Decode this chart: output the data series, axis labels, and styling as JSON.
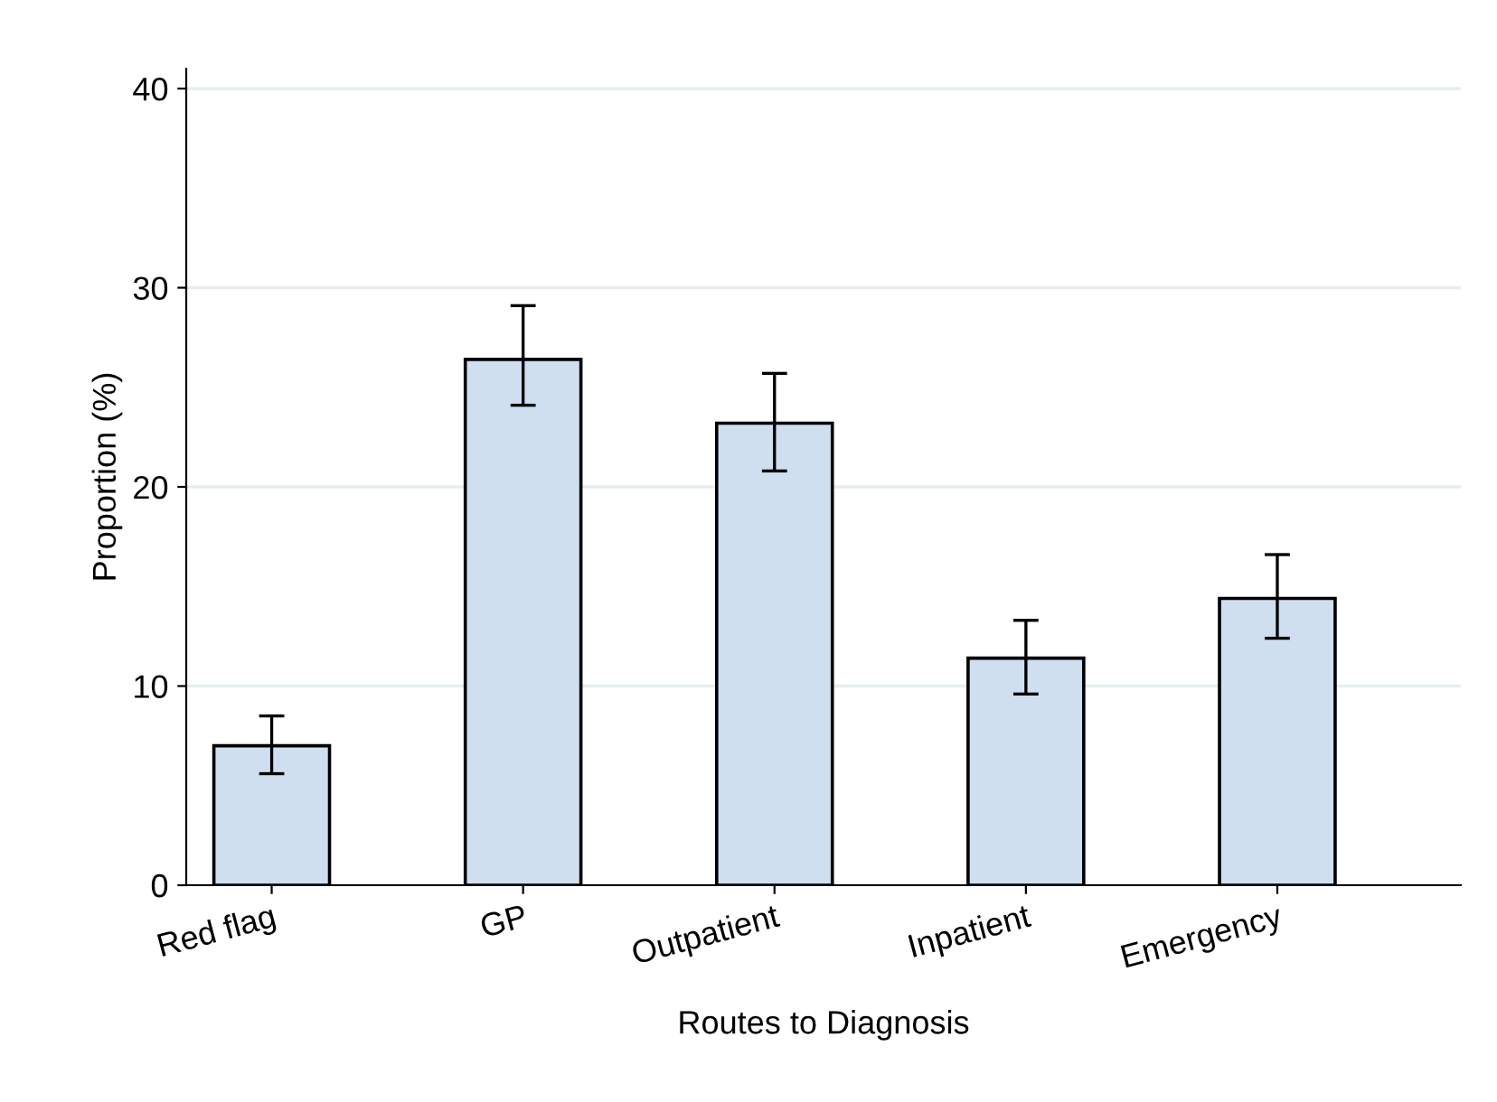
{
  "chart_data": {
    "type": "bar",
    "xlabel": "Routes to Diagnosis",
    "ylabel": "Proportion (%)",
    "categories": [
      "Red flag",
      "GP",
      "Outpatient",
      "Inpatient",
      "Emergency"
    ],
    "values": [
      7.0,
      26.4,
      23.2,
      11.4,
      14.4
    ],
    "errors": [
      [
        5.6,
        8.5
      ],
      [
        24.1,
        29.1
      ],
      [
        20.8,
        25.7
      ],
      [
        9.6,
        13.3
      ],
      [
        12.4,
        16.6
      ]
    ],
    "color": "#cfdff0",
    "ylim": [
      0,
      41
    ],
    "yticks": [
      0,
      10,
      20,
      30,
      40
    ],
    "grid": "y"
  }
}
